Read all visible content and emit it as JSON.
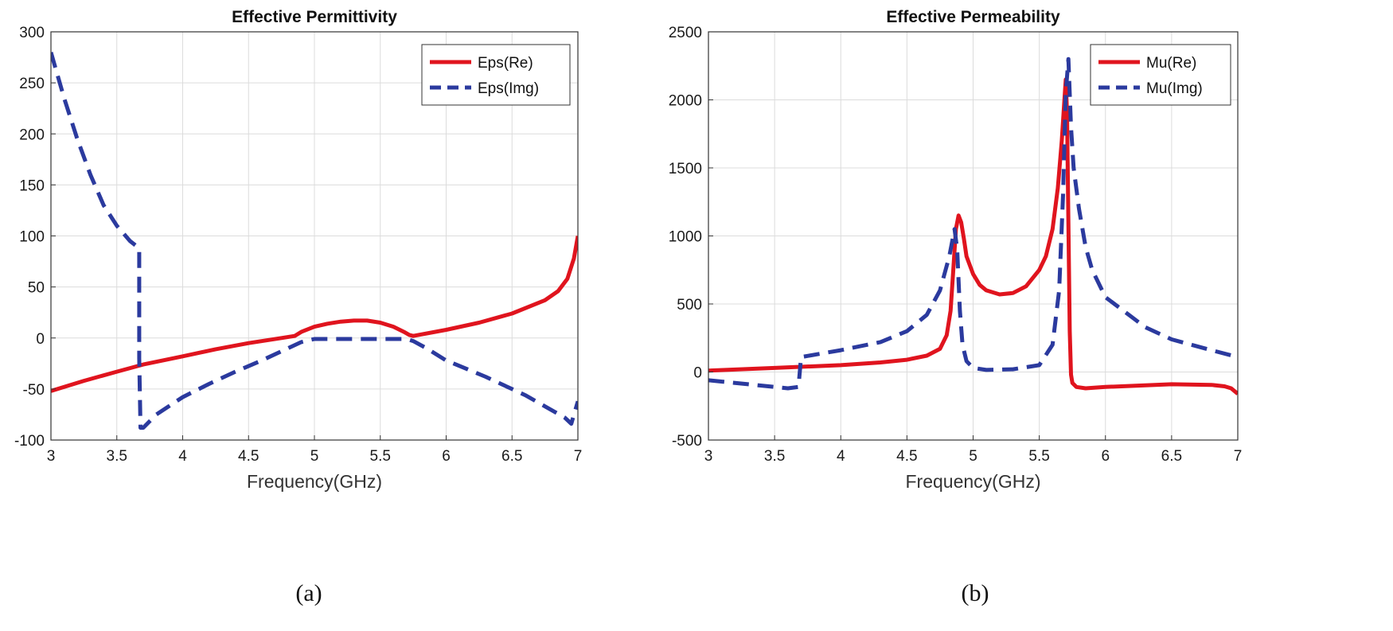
{
  "chart_data": [
    {
      "type": "line",
      "title": "Effective Permittivity",
      "xlabel": "Frequency(GHz)",
      "ylabel": "",
      "xlim": [
        3,
        7
      ],
      "ylim": [
        -100,
        300
      ],
      "xticks": [
        3,
        3.5,
        4,
        4.5,
        5,
        5.5,
        6,
        6.5,
        7
      ],
      "yticks": [
        -100,
        -50,
        0,
        50,
        100,
        150,
        200,
        250,
        300
      ],
      "grid": true,
      "legend_position": "top-right",
      "caption": "(a)",
      "series": [
        {
          "name": "Eps(Re)",
          "color": "#e0141e",
          "style": "solid",
          "x": [
            3.0,
            3.25,
            3.5,
            3.7,
            4.0,
            4.25,
            4.5,
            4.75,
            4.85,
            4.9,
            5.0,
            5.1,
            5.2,
            5.3,
            5.4,
            5.5,
            5.6,
            5.68,
            5.72,
            5.75,
            6.0,
            6.25,
            6.5,
            6.75,
            6.85,
            6.92,
            6.97,
            7.0
          ],
          "y": [
            -52,
            -42,
            -33,
            -26,
            -18,
            -11,
            -5,
            0,
            2,
            6,
            11,
            14,
            16,
            17,
            17,
            15,
            11,
            6,
            3,
            2,
            8,
            15,
            24,
            37,
            46,
            58,
            78,
            100
          ]
        },
        {
          "name": "Eps(Img)",
          "color": "#2b3a9e",
          "style": "dashed",
          "x": [
            3.0,
            3.1,
            3.2,
            3.3,
            3.4,
            3.5,
            3.6,
            3.67,
            3.67,
            3.68,
            3.7,
            3.8,
            4.0,
            4.2,
            4.4,
            4.6,
            4.8,
            4.9,
            5.0,
            5.2,
            5.5,
            5.7,
            5.75,
            5.85,
            6.0,
            6.3,
            6.6,
            6.9,
            6.95,
            7.0
          ],
          "y": [
            280,
            235,
            195,
            160,
            130,
            110,
            95,
            88,
            -20,
            -88,
            -88,
            -75,
            -58,
            -45,
            -33,
            -22,
            -10,
            -4,
            -1,
            -1,
            -1,
            -1,
            -3,
            -10,
            -22,
            -38,
            -56,
            -78,
            -84,
            -62
          ]
        }
      ]
    },
    {
      "type": "line",
      "title": "Effective Permeability",
      "xlabel": "Frequency(GHz)",
      "ylabel": "",
      "xlim": [
        3,
        7
      ],
      "ylim": [
        -500,
        2500
      ],
      "xticks": [
        3,
        3.5,
        4,
        4.5,
        5,
        5.5,
        6,
        6.5,
        7
      ],
      "yticks": [
        -500,
        0,
        500,
        1000,
        1500,
        2000,
        2500
      ],
      "grid": true,
      "legend_position": "top-right",
      "caption": "(b)",
      "series": [
        {
          "name": "Mu(Re)",
          "color": "#e0141e",
          "style": "solid",
          "x": [
            3.0,
            3.5,
            4.0,
            4.3,
            4.5,
            4.65,
            4.75,
            4.8,
            4.83,
            4.85,
            4.87,
            4.89,
            4.91,
            4.93,
            4.95,
            5.0,
            5.05,
            5.1,
            5.2,
            5.3,
            5.4,
            5.5,
            5.55,
            5.6,
            5.64,
            5.67,
            5.69,
            5.7,
            5.71,
            5.72,
            5.73,
            5.74,
            5.75,
            5.78,
            5.85,
            6.0,
            6.5,
            6.8,
            6.9,
            6.95,
            7.0
          ],
          "y": [
            10,
            30,
            50,
            70,
            90,
            120,
            170,
            270,
            450,
            750,
            1050,
            1150,
            1100,
            980,
            850,
            720,
            640,
            600,
            570,
            580,
            630,
            750,
            850,
            1050,
            1350,
            1700,
            2000,
            2150,
            1900,
            1100,
            300,
            -20,
            -80,
            -110,
            -120,
            -110,
            -90,
            -95,
            -105,
            -120,
            -160
          ]
        },
        {
          "name": "Mu(Img)",
          "color": "#2b3a9e",
          "style": "dashed",
          "x": [
            3.0,
            3.3,
            3.6,
            3.68,
            3.7,
            4.0,
            4.3,
            4.5,
            4.65,
            4.75,
            4.82,
            4.86,
            4.88,
            4.9,
            4.92,
            4.95,
            5.0,
            5.1,
            5.3,
            5.5,
            5.6,
            5.65,
            5.68,
            5.7,
            5.72,
            5.74,
            5.76,
            5.8,
            5.85,
            5.9,
            6.0,
            6.3,
            6.5,
            6.8,
            7.0
          ],
          "y": [
            -60,
            -90,
            -120,
            -110,
            110,
            160,
            220,
            300,
            420,
            600,
            850,
            1050,
            900,
            450,
            200,
            80,
            30,
            15,
            20,
            50,
            200,
            600,
            1300,
            2050,
            2300,
            1800,
            1500,
            1200,
            920,
            750,
            550,
            330,
            240,
            160,
            110
          ]
        }
      ]
    }
  ]
}
